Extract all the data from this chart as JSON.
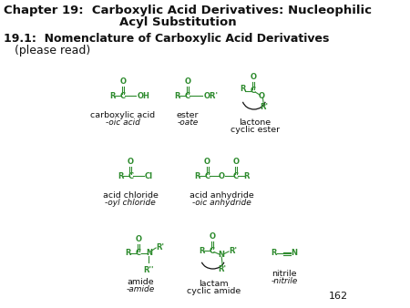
{
  "bg_color": "#ffffff",
  "title1": "Chapter 19:  Carboxylic Acid Derivatives: Nucleophilic",
  "title2": "Acyl Substitution",
  "subtitle1": "19.1:  Nomenclature of Carboxylic Acid Derivatives",
  "subtitle2": "(please read)",
  "green": "#2e8b2e",
  "black": "#111111",
  "page_num": "162",
  "label_fontsize": 6.8,
  "italic_fontsize": 6.5,
  "struct_fontsize": 6.0,
  "title_fontsize": 9.5,
  "subtitle_fontsize": 9.0
}
